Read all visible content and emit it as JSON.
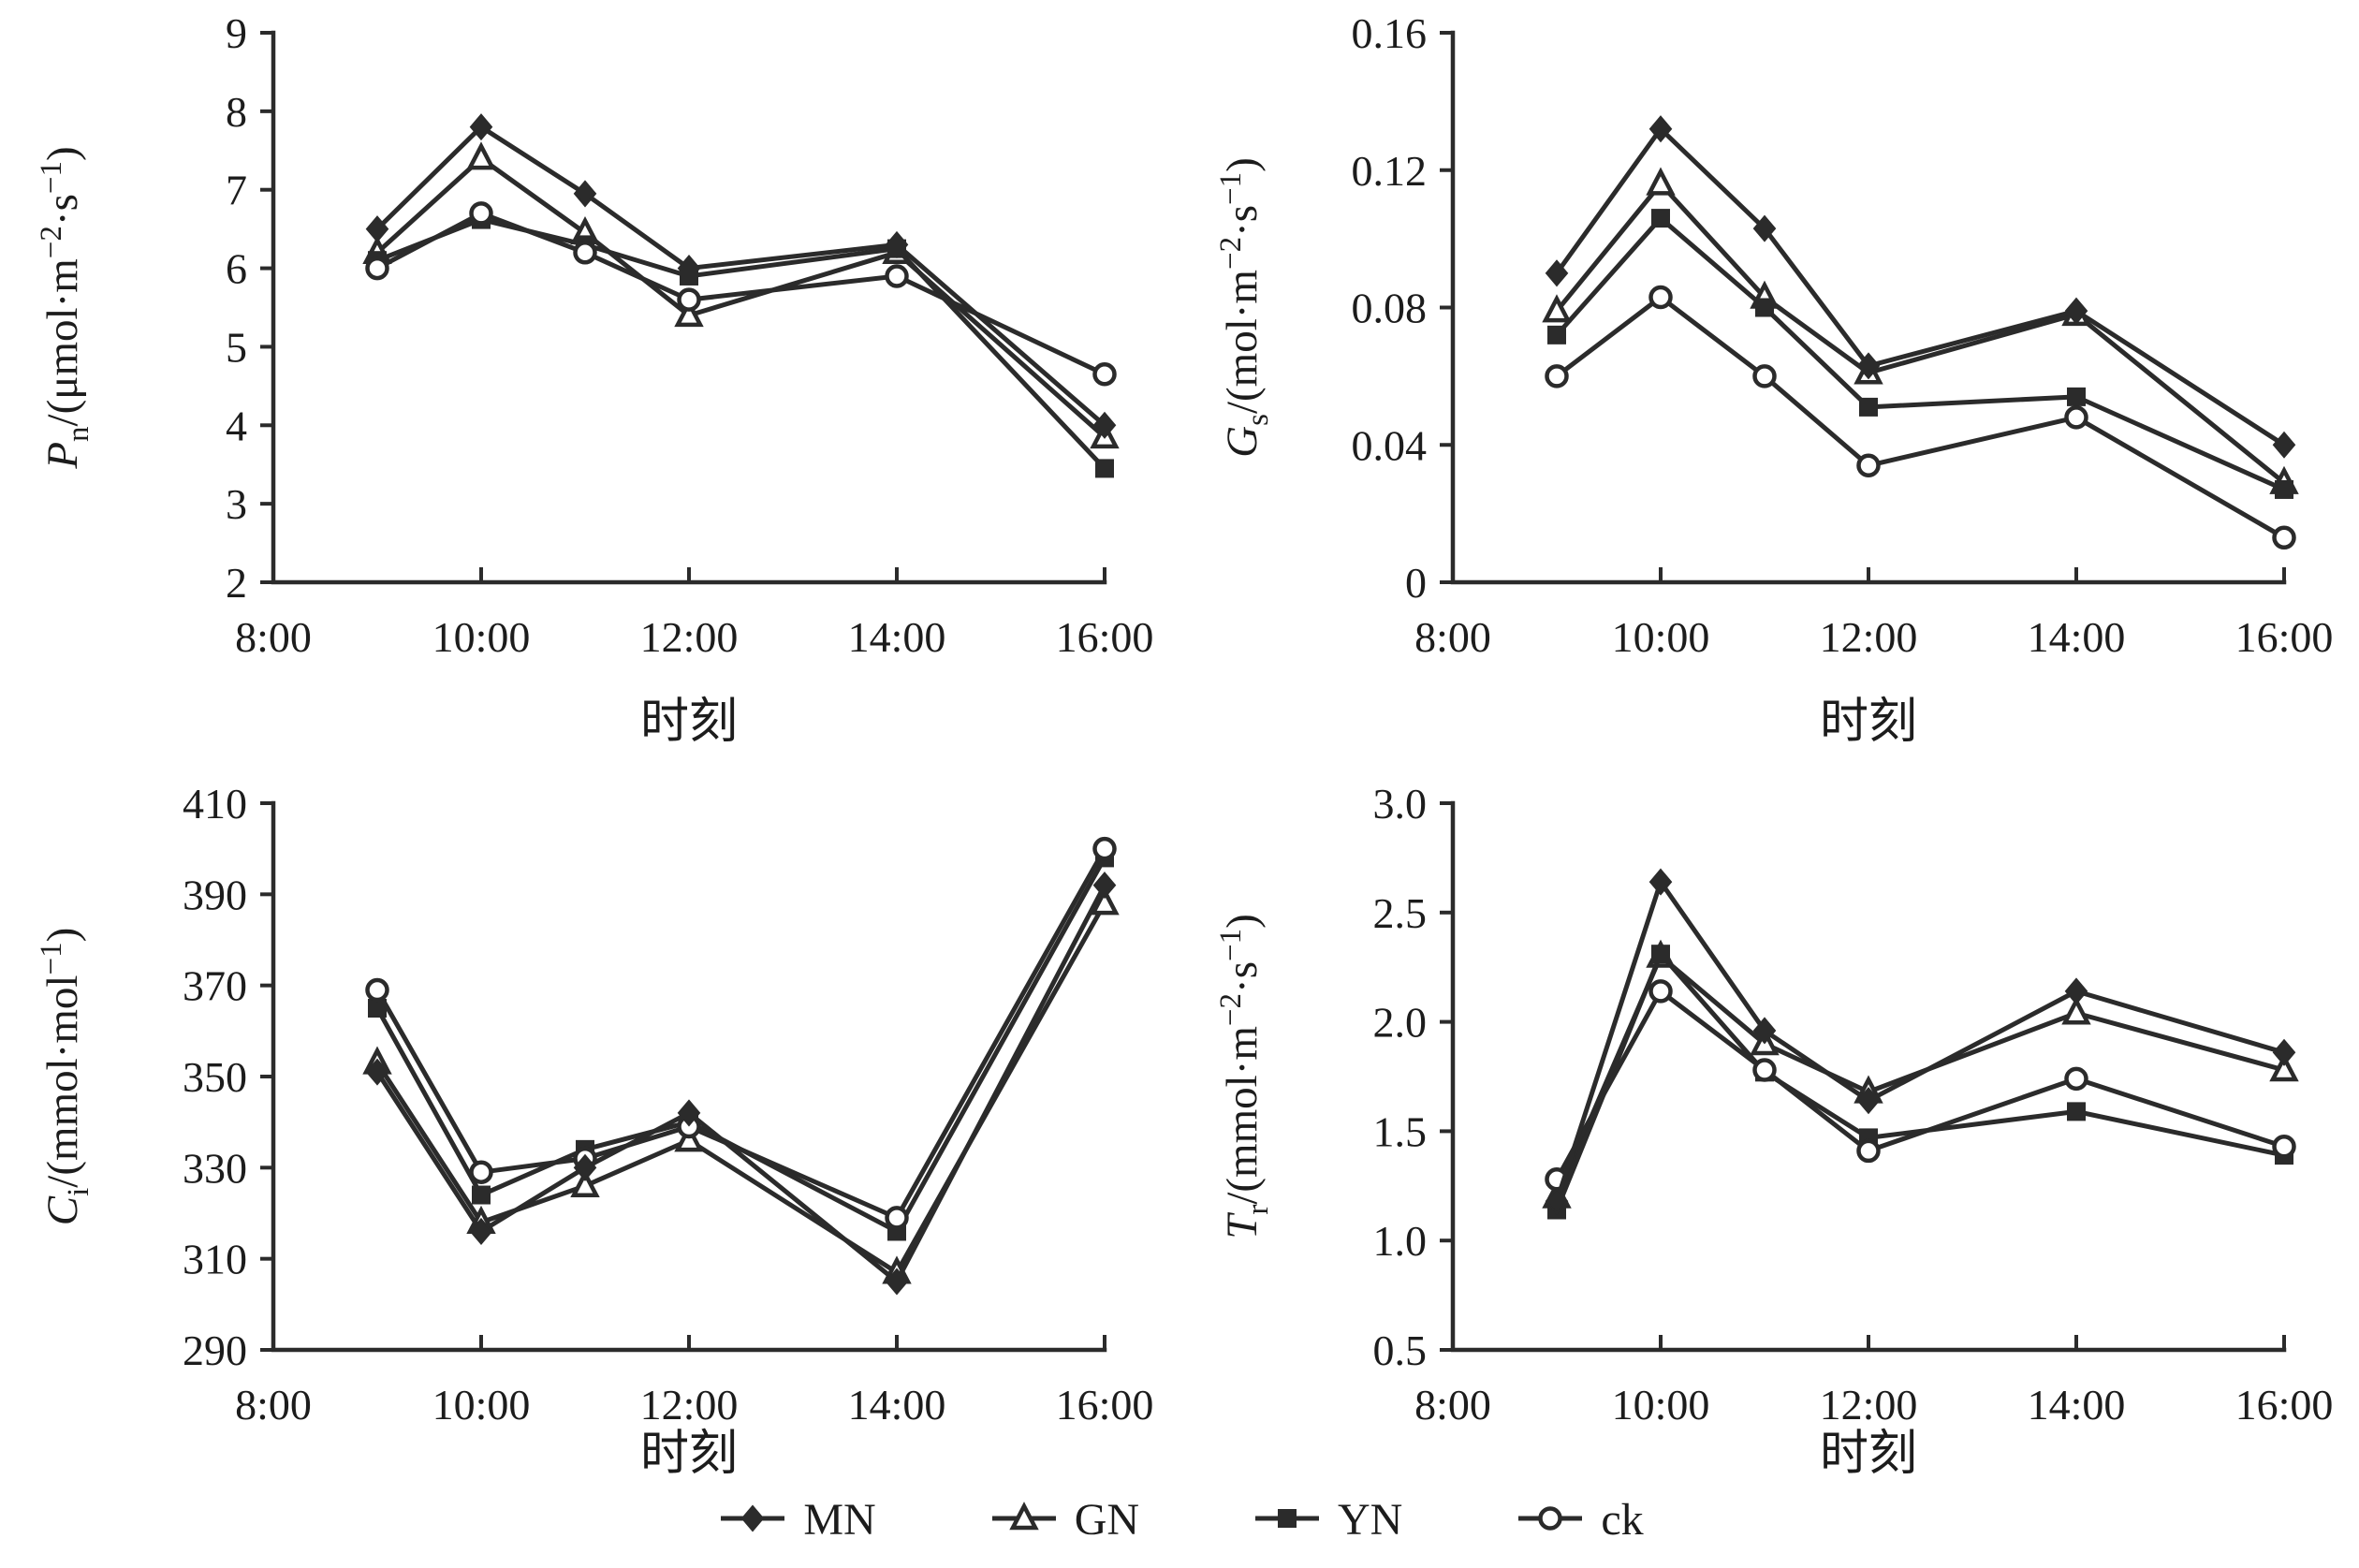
{
  "page": {
    "background": "#ffffff",
    "line_color": "#2b2b2b"
  },
  "legend": {
    "items": [
      {
        "label": "MN",
        "marker": "diamond-filled"
      },
      {
        "label": "GN",
        "marker": "triangle-open"
      },
      {
        "label": "YN",
        "marker": "square-filled"
      },
      {
        "label": "ck",
        "marker": "circle-open"
      }
    ]
  },
  "chart_data": [
    {
      "id": "pn",
      "type": "line",
      "position": "top-left",
      "xlabel": "时刻",
      "ylabel": "Pn/(μmol·m−2·s−1)",
      "ylabel_segments": [
        {
          "t": "P",
          "style": "italic"
        },
        {
          "t": "n",
          "pos": "sub"
        },
        {
          "t": "/(μmol·m"
        },
        {
          "t": "−2",
          "pos": "sup"
        },
        {
          "t": "·s"
        },
        {
          "t": "−1",
          "pos": "sup"
        },
        {
          "t": ")"
        }
      ],
      "xlim": [
        8,
        16
      ],
      "ylim": [
        2,
        9
      ],
      "x_ticks": {
        "values": [
          8,
          10,
          12,
          14,
          16
        ],
        "labels": [
          "8:00",
          "10:00",
          "12:00",
          "14:00",
          "16:00"
        ]
      },
      "y_ticks": {
        "values": [
          2,
          3,
          4,
          5,
          6,
          7,
          8,
          9
        ],
        "labels": [
          "2",
          "3",
          "4",
          "5",
          "6",
          "7",
          "8",
          "9"
        ]
      },
      "x_hours": [
        9,
        10,
        11,
        12,
        14,
        16
      ],
      "x_labels": [
        "9:00",
        "10:00",
        "11:00",
        "12:00",
        "14:00",
        "16:00"
      ],
      "series": [
        {
          "name": "MN",
          "marker": "diamond-filled",
          "values": [
            6.5,
            7.8,
            6.95,
            6.0,
            6.3,
            4.0
          ]
        },
        {
          "name": "GN",
          "marker": "triangle-open",
          "values": [
            6.2,
            7.4,
            6.45,
            5.4,
            6.2,
            3.85
          ]
        },
        {
          "name": "YN",
          "marker": "square-filled",
          "values": [
            6.1,
            6.62,
            6.3,
            5.9,
            6.25,
            3.45
          ]
        },
        {
          "name": "ck",
          "marker": "circle-open",
          "values": [
            6.0,
            6.7,
            6.2,
            5.6,
            5.9,
            4.65
          ]
        }
      ]
    },
    {
      "id": "gs",
      "type": "line",
      "position": "top-right",
      "xlabel": "时刻",
      "ylabel": "Gs/(mol·m−2·s−1)",
      "ylabel_segments": [
        {
          "t": "G",
          "style": "italic"
        },
        {
          "t": "s",
          "pos": "sub"
        },
        {
          "t": "/(mol·m"
        },
        {
          "t": "−2",
          "pos": "sup"
        },
        {
          "t": "·s"
        },
        {
          "t": "−1",
          "pos": "sup"
        },
        {
          "t": ")"
        }
      ],
      "xlim": [
        8,
        16
      ],
      "ylim": [
        0,
        0.16
      ],
      "x_ticks": {
        "values": [
          8,
          10,
          12,
          14,
          16
        ],
        "labels": [
          "8:00",
          "10:00",
          "12:00",
          "14:00",
          "16:00"
        ]
      },
      "y_ticks": {
        "values": [
          0,
          0.04,
          0.08,
          0.12,
          0.16
        ],
        "labels": [
          "0",
          "0.04",
          "0.08",
          "0.12",
          "0.16"
        ]
      },
      "x_hours": [
        9,
        10,
        11,
        12,
        14,
        16
      ],
      "x_labels": [
        "9:00",
        "10:00",
        "11:00",
        "12:00",
        "14:00",
        "16:00"
      ],
      "series": [
        {
          "name": "MN",
          "marker": "diamond-filled",
          "values": [
            0.09,
            0.132,
            0.103,
            0.063,
            0.079,
            0.04
          ]
        },
        {
          "name": "GN",
          "marker": "triangle-open",
          "values": [
            0.079,
            0.116,
            0.083,
            0.061,
            0.078,
            0.029
          ]
        },
        {
          "name": "YN",
          "marker": "square-filled",
          "values": [
            0.072,
            0.106,
            0.08,
            0.051,
            0.054,
            0.027
          ]
        },
        {
          "name": "ck",
          "marker": "circle-open",
          "values": [
            0.06,
            0.083,
            0.06,
            0.034,
            0.048,
            0.013
          ]
        }
      ]
    },
    {
      "id": "ci",
      "type": "line",
      "position": "bottom-left",
      "xlabel": "时刻",
      "ylabel": "Ci/(mmol·mol−1)",
      "ylabel_segments": [
        {
          "t": "C",
          "style": "italic"
        },
        {
          "t": "i",
          "pos": "sub"
        },
        {
          "t": "/(mmol·mol"
        },
        {
          "t": "−1",
          "pos": "sup"
        },
        {
          "t": ")"
        }
      ],
      "xlim": [
        8,
        16
      ],
      "ylim": [
        290,
        410
      ],
      "x_ticks": {
        "values": [
          8,
          10,
          12,
          14,
          16
        ],
        "labels": [
          "8:00",
          "10:00",
          "12:00",
          "14:00",
          "16:00"
        ]
      },
      "y_ticks": {
        "values": [
          290,
          310,
          330,
          350,
          370,
          390,
          410
        ],
        "labels": [
          "290",
          "310",
          "330",
          "350",
          "370",
          "390",
          "410"
        ]
      },
      "x_hours": [
        9,
        10,
        11,
        12,
        14,
        16
      ],
      "x_labels": [
        "9:00",
        "10:00",
        "11:00",
        "12:00",
        "14:00",
        "16:00"
      ],
      "series": [
        {
          "name": "MN",
          "marker": "diamond-filled",
          "values": [
            351,
            316,
            330,
            342,
            305,
            392
          ]
        },
        {
          "name": "GN",
          "marker": "triangle-open",
          "values": [
            353,
            318,
            326,
            336,
            307,
            388
          ]
        },
        {
          "name": "YN",
          "marker": "square-filled",
          "values": [
            365,
            324,
            334,
            340,
            316,
            398
          ]
        },
        {
          "name": "ck",
          "marker": "circle-open",
          "values": [
            369,
            329,
            332,
            339,
            319,
            400
          ]
        }
      ]
    },
    {
      "id": "tr",
      "type": "line",
      "position": "bottom-right",
      "xlabel": "时刻",
      "ylabel": "Tr/(mmol·m−2·s−1)",
      "ylabel_segments": [
        {
          "t": "T",
          "style": "italic"
        },
        {
          "t": "r",
          "pos": "sub"
        },
        {
          "t": "/(mmol·m"
        },
        {
          "t": "−2",
          "pos": "sup"
        },
        {
          "t": "·s"
        },
        {
          "t": "−1",
          "pos": "sup"
        },
        {
          "t": ")"
        }
      ],
      "xlim": [
        8,
        16
      ],
      "ylim": [
        0.5,
        3.0
      ],
      "x_ticks": {
        "values": [
          8,
          10,
          12,
          14,
          16
        ],
        "labels": [
          "8:00",
          "10:00",
          "12:00",
          "14:00",
          "16:00"
        ]
      },
      "y_ticks": {
        "values": [
          0.5,
          1.0,
          1.5,
          2.0,
          2.5,
          3.0
        ],
        "labels": [
          "0.5",
          "1.0",
          "1.5",
          "2.0",
          "2.5",
          "3.0"
        ]
      },
      "x_hours": [
        9,
        10,
        11,
        12,
        14,
        16
      ],
      "x_labels": [
        "9:00",
        "10:00",
        "11:00",
        "12:00",
        "14:00",
        "16:00"
      ],
      "series": [
        {
          "name": "MN",
          "marker": "diamond-filled",
          "values": [
            1.18,
            2.64,
            1.96,
            1.64,
            2.14,
            1.86
          ]
        },
        {
          "name": "GN",
          "marker": "triangle-open",
          "values": [
            1.2,
            2.3,
            1.9,
            1.68,
            2.04,
            1.78
          ]
        },
        {
          "name": "YN",
          "marker": "square-filled",
          "values": [
            1.14,
            2.31,
            1.77,
            1.47,
            1.59,
            1.39
          ]
        },
        {
          "name": "ck",
          "marker": "circle-open",
          "values": [
            1.28,
            2.14,
            1.78,
            1.41,
            1.74,
            1.43
          ]
        }
      ]
    }
  ]
}
